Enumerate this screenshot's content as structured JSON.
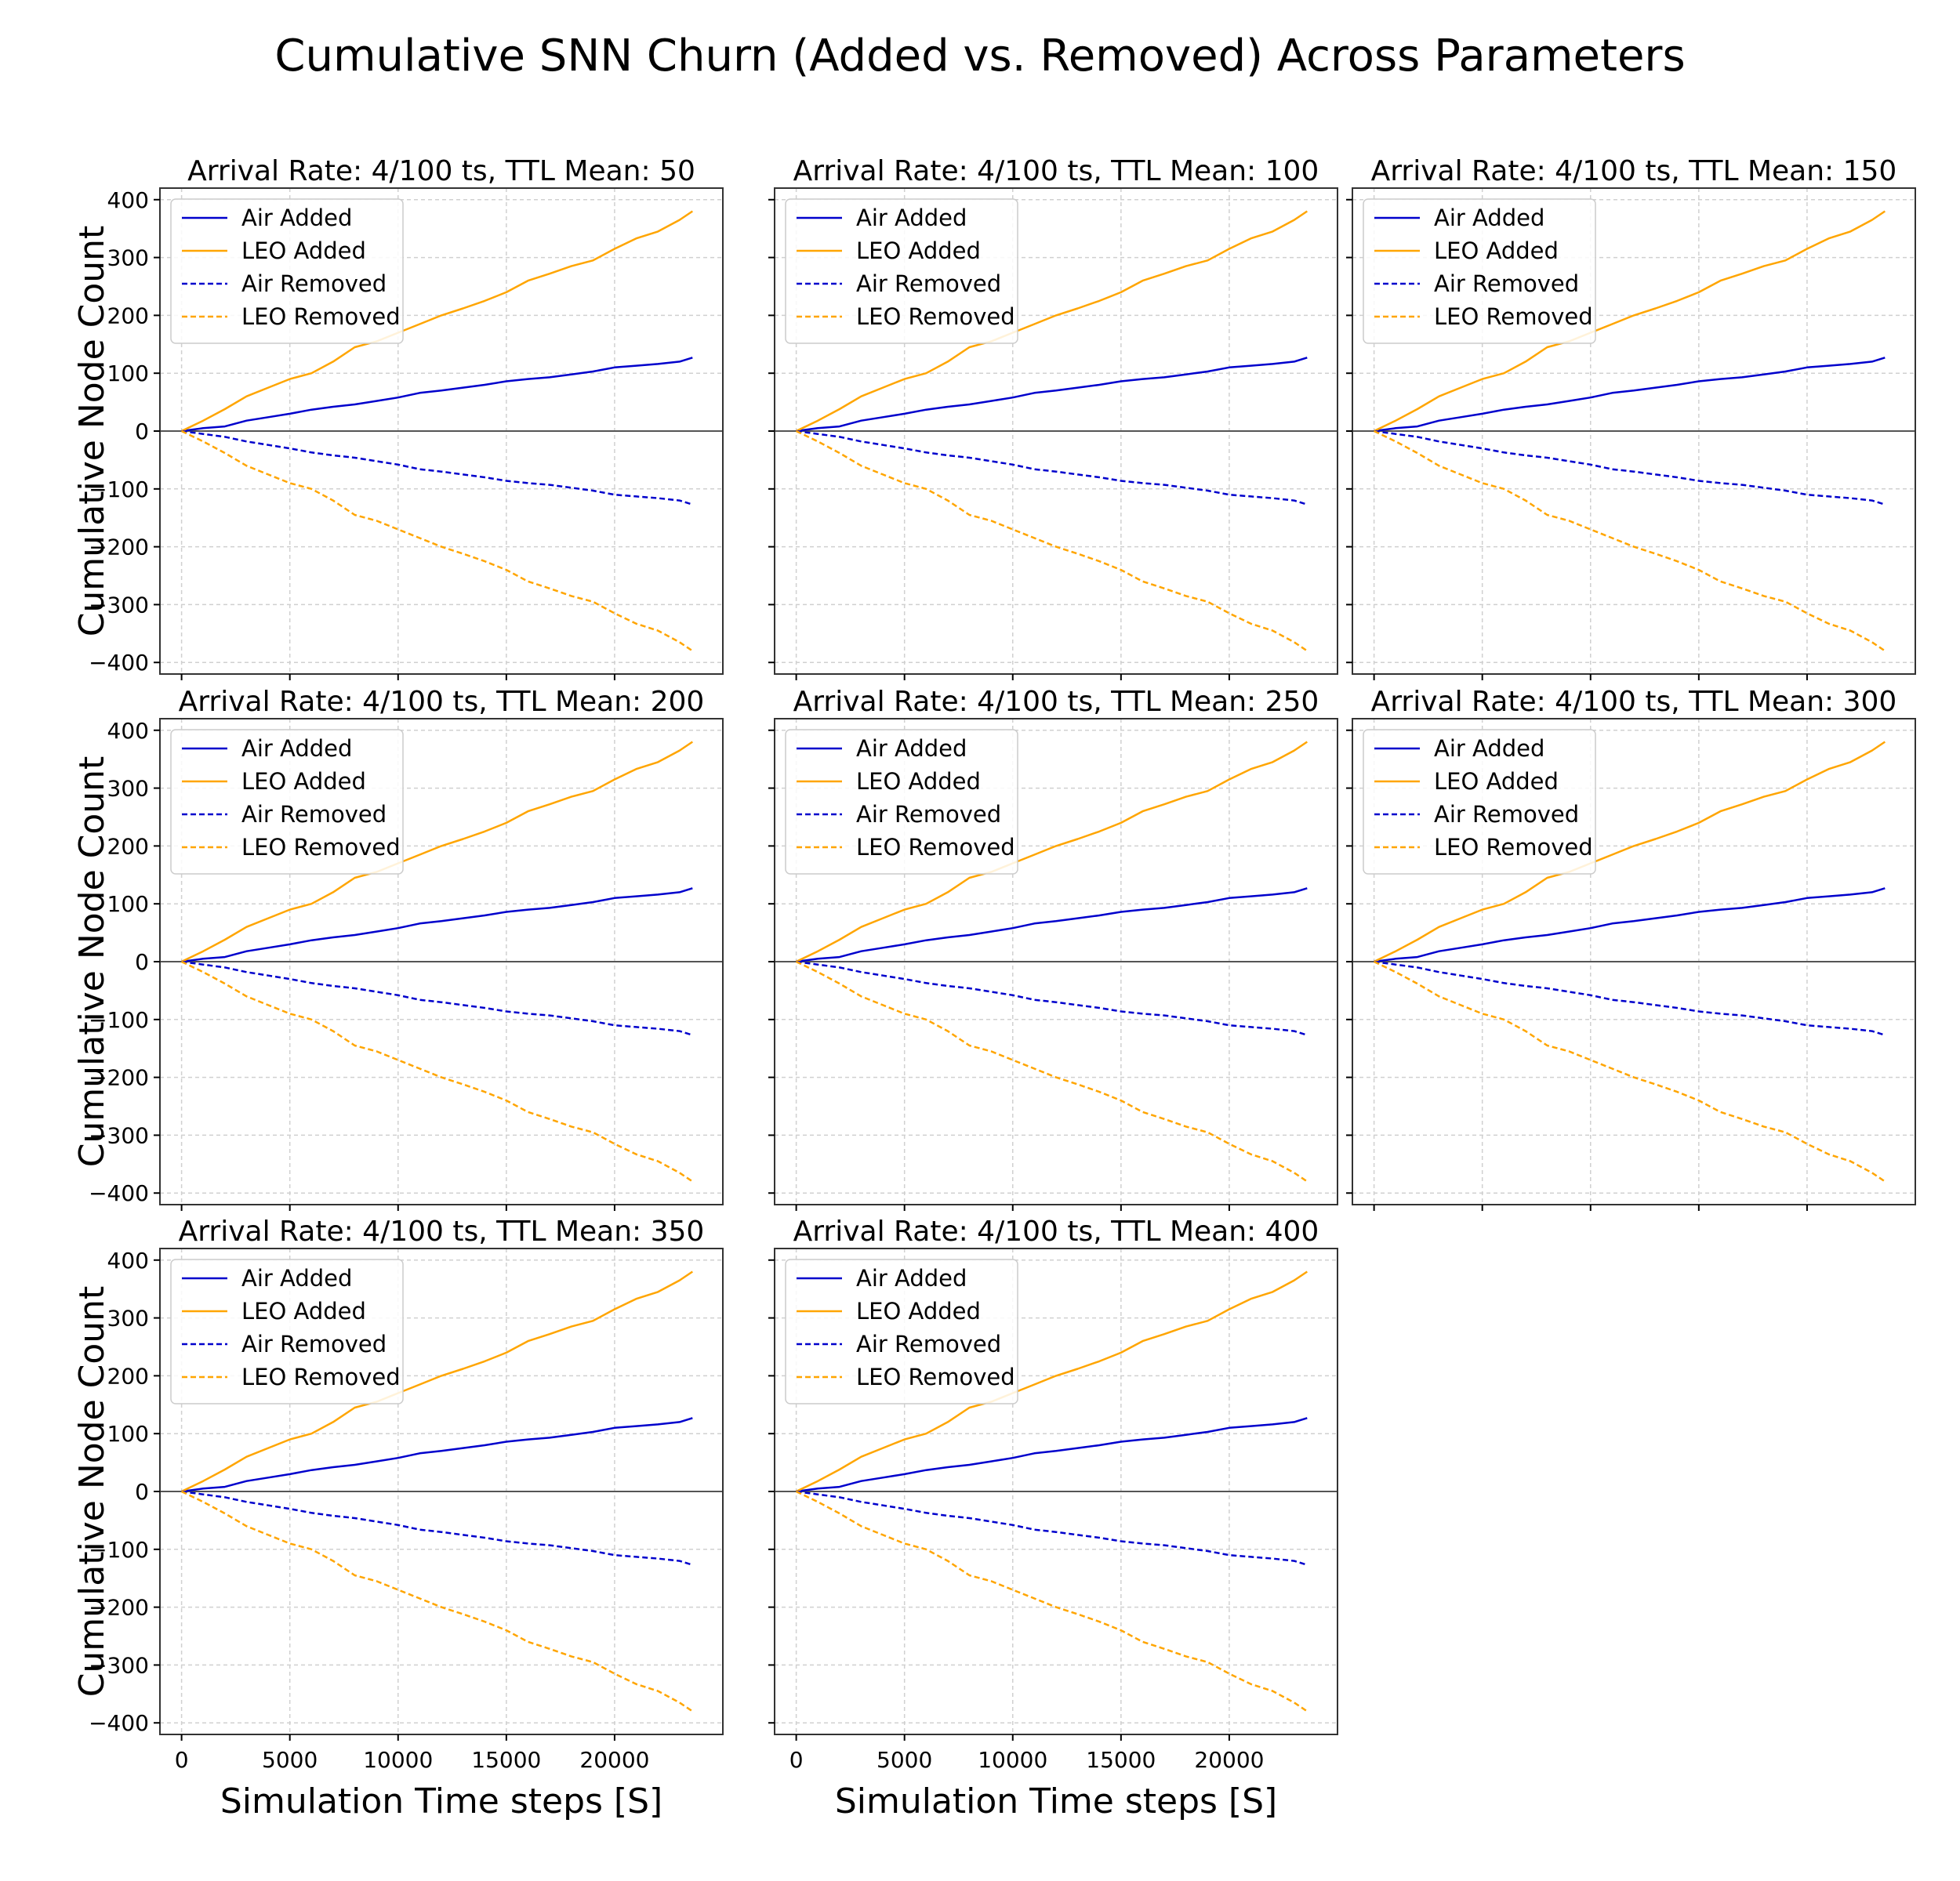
{
  "figure": {
    "suptitle": "Cumulative SNN Churn (Added vs. Removed) Across Parameters",
    "xlabel": "Simulation Time steps [S]",
    "ylabel": "Cumulative Node Count"
  },
  "colors": {
    "air": "#0000cc",
    "leo": "#ffa500",
    "zero_line": "#555555",
    "grid": "#d0d0d0",
    "frame": "#333333"
  },
  "chart_data": {
    "type": "line",
    "layout": "3x3 grid of subplots (8 panels used), shared axes",
    "xlim": [
      -1000,
      25000
    ],
    "ylim": [
      -420,
      420
    ],
    "xticks": [
      0,
      5000,
      10000,
      15000,
      20000
    ],
    "yticks": [
      -400,
      -300,
      -200,
      -100,
      0,
      100,
      200,
      300,
      400
    ],
    "grid": true,
    "legend_position": "upper-left",
    "zero_reference_line": true,
    "x": [
      0,
      1000,
      2000,
      3000,
      4000,
      5000,
      6000,
      7000,
      8000,
      9000,
      10000,
      11000,
      12000,
      13000,
      14000,
      15000,
      16000,
      17000,
      18000,
      19000,
      20000,
      21000,
      22000,
      23000,
      23600
    ],
    "series": [
      {
        "name": "Air Added",
        "style": "solid",
        "color": "air",
        "values": [
          0,
          5,
          8,
          18,
          24,
          30,
          37,
          42,
          46,
          52,
          58,
          66,
          70,
          75,
          80,
          86,
          90,
          93,
          98,
          103,
          110,
          113,
          116,
          120,
          127
        ]
      },
      {
        "name": "LEO Added",
        "style": "solid",
        "color": "leo",
        "values": [
          0,
          18,
          38,
          60,
          75,
          90,
          100,
          120,
          145,
          155,
          170,
          185,
          200,
          212,
          225,
          240,
          260,
          272,
          285,
          295,
          315,
          333,
          345,
          365,
          380
        ]
      },
      {
        "name": "Air Removed",
        "style": "dashed",
        "color": "air",
        "values": [
          0,
          -5,
          -10,
          -18,
          -24,
          -30,
          -37,
          -42,
          -46,
          -52,
          -58,
          -66,
          -70,
          -75,
          -80,
          -86,
          -90,
          -93,
          -98,
          -103,
          -110,
          -113,
          -116,
          -120,
          -127
        ]
      },
      {
        "name": "LEO Removed",
        "style": "dashed",
        "color": "leo",
        "values": [
          0,
          -18,
          -38,
          -60,
          -75,
          -90,
          -100,
          -120,
          -145,
          -155,
          -170,
          -185,
          -200,
          -212,
          -225,
          -240,
          -260,
          -272,
          -285,
          -295,
          -315,
          -333,
          -345,
          -365,
          -380
        ]
      }
    ],
    "panels": [
      {
        "title": "Arrival Rate: 4/100 ts, TTL Mean: 50"
      },
      {
        "title": "Arrival Rate: 4/100 ts, TTL Mean: 100"
      },
      {
        "title": "Arrival Rate: 4/100 ts, TTL Mean: 150"
      },
      {
        "title": "Arrival Rate: 4/100 ts, TTL Mean: 200"
      },
      {
        "title": "Arrival Rate: 4/100 ts, TTL Mean: 250"
      },
      {
        "title": "Arrival Rate: 4/100 ts, TTL Mean: 300"
      },
      {
        "title": "Arrival Rate: 4/100 ts, TTL Mean: 350"
      },
      {
        "title": "Arrival Rate: 4/100 ts, TTL Mean: 400"
      }
    ]
  }
}
